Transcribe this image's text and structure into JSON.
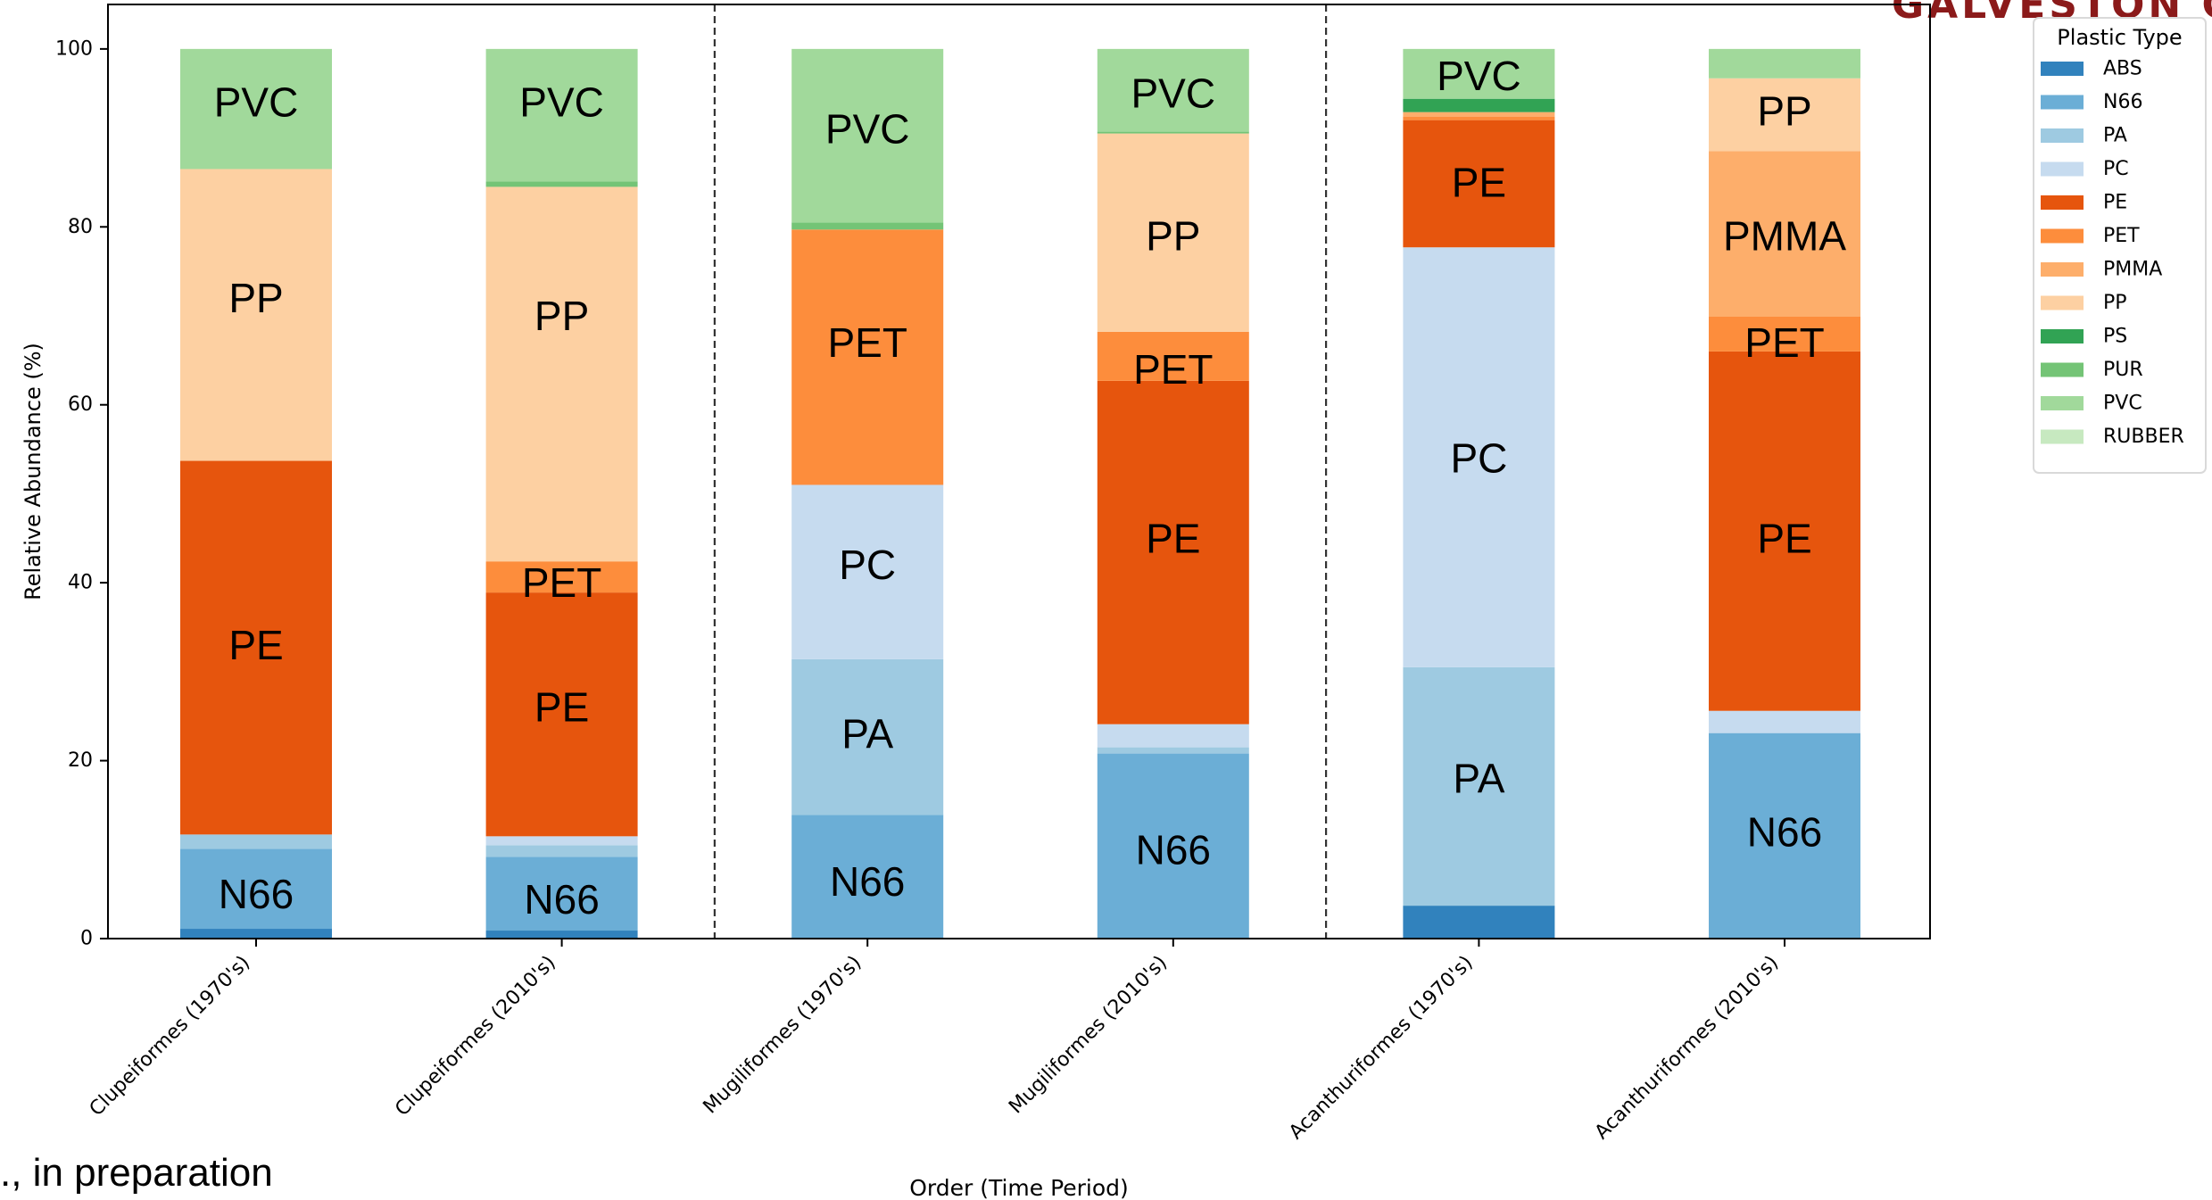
{
  "corner_text": "GALVESTON CA",
  "footnote": "., in preparation",
  "chart_data": {
    "type": "bar",
    "stacked": true,
    "categories": [
      "Clupeiformes (1970's)",
      "Clupeiformes (2010's)",
      "Mugiliformes (1970's)",
      "Mugiliformes (2010's)",
      "Acanthuriformes (1970's)",
      "Acanthuriformes (2010's)"
    ],
    "xlabel": "Order (Time Period)",
    "ylabel": "Relative Abundance (%)",
    "ylim": [
      0,
      105
    ],
    "yticks": [
      0,
      20,
      40,
      60,
      80,
      100
    ],
    "grid": false,
    "group_dividers_after": [
      1,
      3
    ],
    "legend": {
      "title": "Plastic Type",
      "position": "top-right"
    },
    "series": [
      {
        "name": "ABS",
        "color": "#3182bd",
        "values": [
          1.1,
          0.9,
          0,
          0,
          3.7,
          0
        ]
      },
      {
        "name": "N66",
        "color": "#6baed6",
        "values": [
          9.0,
          8.3,
          13.9,
          20.8,
          0,
          23.1
        ]
      },
      {
        "name": "PA",
        "color": "#9ecae1",
        "values": [
          1.6,
          1.3,
          17.5,
          0.7,
          26.8,
          0
        ]
      },
      {
        "name": "PC",
        "color": "#c6dbef",
        "values": [
          0,
          1.0,
          19.6,
          2.6,
          47.2,
          2.5
        ]
      },
      {
        "name": "PE",
        "color": "#e6550d",
        "values": [
          42.0,
          27.4,
          0,
          38.6,
          14.3,
          40.4
        ]
      },
      {
        "name": "PET",
        "color": "#fd8d3c",
        "values": [
          0,
          3.5,
          28.7,
          5.5,
          0.4,
          3.9
        ]
      },
      {
        "name": "PMMA",
        "color": "#fdae6b",
        "values": [
          0,
          0,
          0,
          0,
          0.5,
          18.6
        ]
      },
      {
        "name": "PP",
        "color": "#fdd0a2",
        "values": [
          32.8,
          42.1,
          0,
          22.3,
          0,
          8.2
        ]
      },
      {
        "name": "PS",
        "color": "#31a354",
        "values": [
          0,
          0,
          0,
          0,
          1.5,
          0
        ]
      },
      {
        "name": "PUR",
        "color": "#74c476",
        "values": [
          0,
          0.6,
          0.8,
          0.2,
          0,
          0
        ]
      },
      {
        "name": "PVC",
        "color": "#a1d99b",
        "values": [
          13.5,
          14.9,
          19.5,
          9.3,
          5.6,
          3.3
        ]
      },
      {
        "name": "RUBBER",
        "color": "#c7e9c0",
        "values": [
          0,
          0,
          0,
          0,
          0,
          0
        ]
      }
    ],
    "bar_labels": [
      [
        {
          "text": "N66",
          "y": 5
        },
        {
          "text": "PE",
          "y": 33
        },
        {
          "text": "PP",
          "y": 72
        },
        {
          "text": "PVC",
          "y": 94
        }
      ],
      [
        {
          "text": "N66",
          "y": 4.4
        },
        {
          "text": "PE",
          "y": 26
        },
        {
          "text": "PET",
          "y": 40
        },
        {
          "text": "PP",
          "y": 70
        },
        {
          "text": "PVC",
          "y": 94
        }
      ],
      [
        {
          "text": "N66",
          "y": 6.4
        },
        {
          "text": "PA",
          "y": 23
        },
        {
          "text": "PC",
          "y": 42
        },
        {
          "text": "PET",
          "y": 67
        },
        {
          "text": "PVC",
          "y": 91
        }
      ],
      [
        {
          "text": "N66",
          "y": 10
        },
        {
          "text": "PE",
          "y": 45
        },
        {
          "text": "PET",
          "y": 64
        },
        {
          "text": "PP",
          "y": 79
        },
        {
          "text": "PVC",
          "y": 95
        }
      ],
      [
        {
          "text": "PA",
          "y": 18
        },
        {
          "text": "PC",
          "y": 54
        },
        {
          "text": "PE",
          "y": 85
        },
        {
          "text": "PVC",
          "y": 97
        }
      ],
      [
        {
          "text": "N66",
          "y": 12
        },
        {
          "text": "PE",
          "y": 45
        },
        {
          "text": "PET",
          "y": 67
        },
        {
          "text": "PMMA",
          "y": 79
        },
        {
          "text": "PP",
          "y": 93
        }
      ]
    ]
  }
}
